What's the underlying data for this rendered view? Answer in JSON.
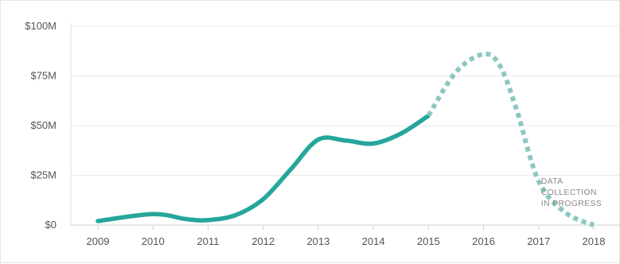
{
  "chart_data": {
    "type": "line",
    "title": "",
    "xlabel": "",
    "ylabel": "",
    "x": [
      "2009",
      "2010",
      "2011",
      "2012",
      "2013",
      "2014",
      "2015",
      "2016",
      "2017",
      "2018"
    ],
    "ylim": [
      0,
      100
    ],
    "y_ticks": [
      {
        "value": 0,
        "label": "$0"
      },
      {
        "value": 25,
        "label": "$25M"
      },
      {
        "value": 50,
        "label": "$50M"
      },
      {
        "value": 75,
        "label": "$75M"
      },
      {
        "value": 100,
        "label": "$100M"
      }
    ],
    "grid": true,
    "series": [
      {
        "style": "solid",
        "color": "#26a69a",
        "points": [
          {
            "x": 2009,
            "y": 2
          },
          {
            "x": 2010,
            "y": 5.5
          },
          {
            "x": 2010.6,
            "y": 3
          },
          {
            "x": 2011,
            "y": 2.5
          },
          {
            "x": 2011.5,
            "y": 5
          },
          {
            "x": 2012,
            "y": 13
          },
          {
            "x": 2012.5,
            "y": 28
          },
          {
            "x": 2013,
            "y": 43
          },
          {
            "x": 2013.5,
            "y": 42.5
          },
          {
            "x": 2014,
            "y": 41
          },
          {
            "x": 2014.5,
            "y": 46
          },
          {
            "x": 2015,
            "y": 55
          }
        ]
      },
      {
        "style": "dotted",
        "color": "#8cc7c2",
        "points": [
          {
            "x": 2015,
            "y": 55
          },
          {
            "x": 2015.5,
            "y": 77
          },
          {
            "x": 2016,
            "y": 86
          },
          {
            "x": 2016.3,
            "y": 80
          },
          {
            "x": 2016.6,
            "y": 58
          },
          {
            "x": 2017,
            "y": 22
          },
          {
            "x": 2017.5,
            "y": 6
          },
          {
            "x": 2018,
            "y": 0
          }
        ]
      }
    ],
    "annotation": {
      "lines": [
        "DATA",
        "COLLECTION",
        "IN PROGRESS"
      ],
      "x": 2017
    }
  }
}
